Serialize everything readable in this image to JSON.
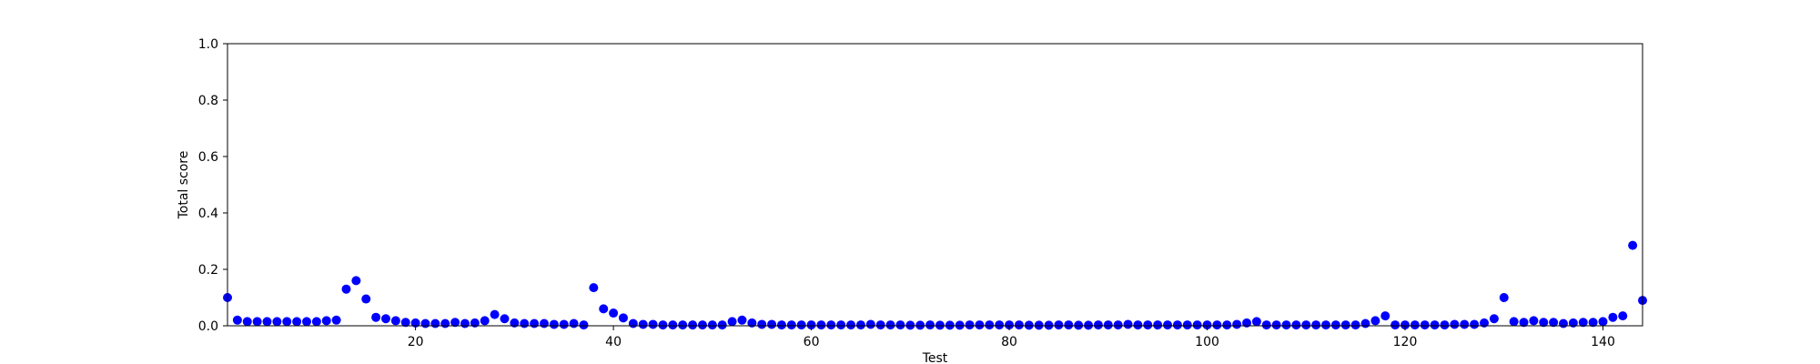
{
  "chart_data": {
    "type": "scatter",
    "title": "",
    "xlabel": "Test",
    "ylabel": "Total score",
    "xlim": [
      1,
      144
    ],
    "ylim": [
      0.0,
      1.0
    ],
    "xticks": [
      20,
      40,
      60,
      80,
      100,
      120,
      140
    ],
    "xtick_labels": [
      "20",
      "40",
      "60",
      "80",
      "100",
      "120",
      "140"
    ],
    "yticks": [
      0.0,
      0.2,
      0.4,
      0.6,
      0.8,
      1.0
    ],
    "ytick_labels": [
      "0.0",
      "0.2",
      "0.4",
      "0.6",
      "0.8",
      "1.0"
    ],
    "grid": false,
    "marker_color": "#0000ff",
    "series": [
      {
        "name": "",
        "x": [
          1,
          2,
          3,
          4,
          5,
          6,
          7,
          8,
          9,
          10,
          11,
          12,
          13,
          14,
          15,
          16,
          17,
          18,
          19,
          20,
          21,
          22,
          23,
          24,
          25,
          26,
          27,
          28,
          29,
          30,
          31,
          32,
          33,
          34,
          35,
          36,
          37,
          38,
          39,
          40,
          41,
          42,
          43,
          44,
          45,
          46,
          47,
          48,
          49,
          50,
          51,
          52,
          53,
          54,
          55,
          56,
          57,
          58,
          59,
          60,
          61,
          62,
          63,
          64,
          65,
          66,
          67,
          68,
          69,
          70,
          71,
          72,
          73,
          74,
          75,
          76,
          77,
          78,
          79,
          80,
          81,
          82,
          83,
          84,
          85,
          86,
          87,
          88,
          89,
          90,
          91,
          92,
          93,
          94,
          95,
          96,
          97,
          98,
          99,
          100,
          101,
          102,
          103,
          104,
          105,
          106,
          107,
          108,
          109,
          110,
          111,
          112,
          113,
          114,
          115,
          116,
          117,
          118,
          119,
          120,
          121,
          122,
          123,
          124,
          125,
          126,
          127,
          128,
          129,
          130,
          131,
          132,
          133,
          134,
          135,
          136,
          137,
          138,
          139,
          140,
          141,
          142,
          143,
          144
        ],
        "y": [
          0.1,
          0.02,
          0.015,
          0.015,
          0.015,
          0.015,
          0.015,
          0.015,
          0.015,
          0.015,
          0.018,
          0.02,
          0.13,
          0.16,
          0.095,
          0.03,
          0.025,
          0.018,
          0.012,
          0.01,
          0.008,
          0.008,
          0.008,
          0.012,
          0.008,
          0.01,
          0.018,
          0.04,
          0.025,
          0.01,
          0.008,
          0.008,
          0.008,
          0.005,
          0.005,
          0.008,
          0.003,
          0.135,
          0.06,
          0.045,
          0.028,
          0.008,
          0.005,
          0.005,
          0.003,
          0.003,
          0.003,
          0.003,
          0.003,
          0.003,
          0.003,
          0.015,
          0.02,
          0.01,
          0.005,
          0.005,
          0.003,
          0.003,
          0.003,
          0.003,
          0.003,
          0.003,
          0.003,
          0.003,
          0.003,
          0.005,
          0.003,
          0.003,
          0.003,
          0.002,
          0.002,
          0.003,
          0.002,
          0.002,
          0.002,
          0.003,
          0.003,
          0.003,
          0.003,
          0.003,
          0.003,
          0.002,
          0.002,
          0.002,
          0.003,
          0.003,
          0.002,
          0.002,
          0.003,
          0.003,
          0.003,
          0.005,
          0.003,
          0.003,
          0.003,
          0.003,
          0.003,
          0.003,
          0.003,
          0.003,
          0.003,
          0.003,
          0.005,
          0.01,
          0.015,
          0.003,
          0.003,
          0.003,
          0.003,
          0.003,
          0.003,
          0.003,
          0.003,
          0.003,
          0.003,
          0.008,
          0.018,
          0.035,
          0.003,
          0.003,
          0.003,
          0.003,
          0.003,
          0.003,
          0.005,
          0.005,
          0.005,
          0.01,
          0.025,
          0.1,
          0.015,
          0.012,
          0.018,
          0.012,
          0.012,
          0.008,
          0.01,
          0.012,
          0.012,
          0.015,
          0.03,
          0.035,
          0.285,
          0.09
        ]
      }
    ]
  }
}
